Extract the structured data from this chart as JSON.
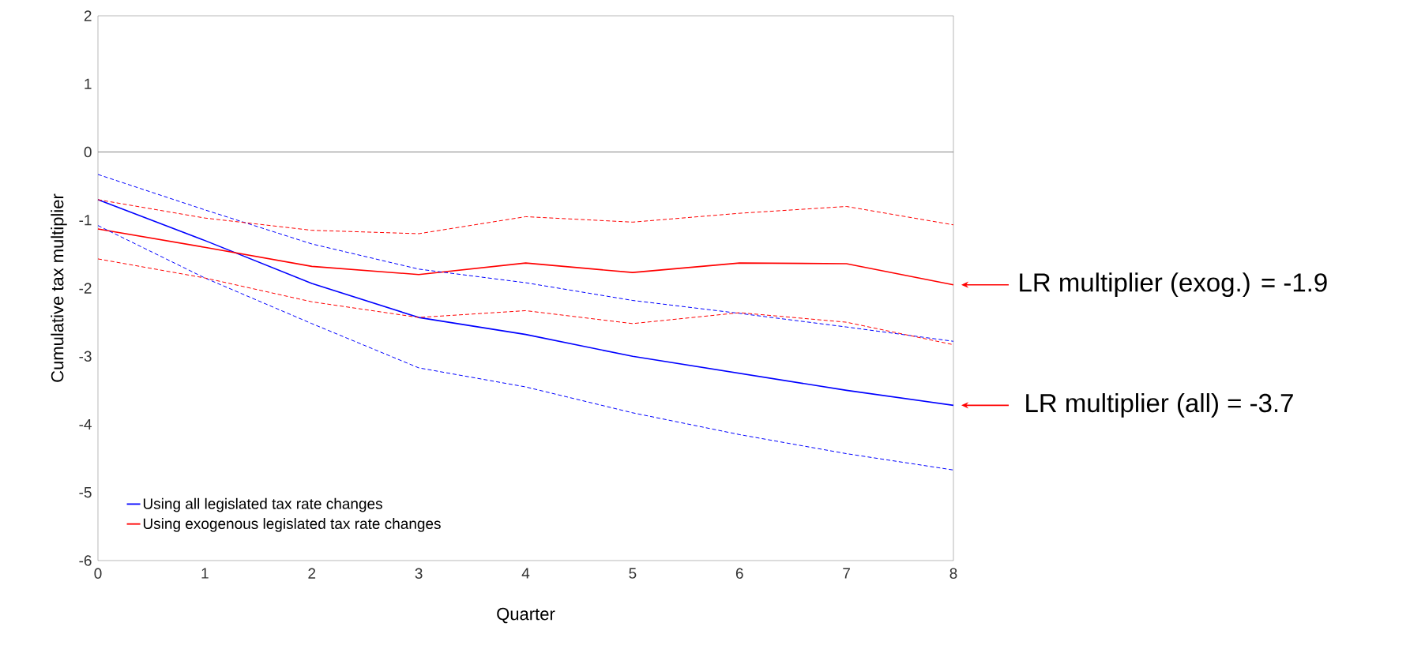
{
  "chart_data": {
    "type": "line",
    "xlabel": "Quarter",
    "ylabel": "Cumulative tax multiplier",
    "x": [
      0,
      1,
      2,
      3,
      4,
      5,
      6,
      7,
      8
    ],
    "xlim": [
      0,
      8
    ],
    "xticks": [
      0,
      1,
      2,
      3,
      4,
      5,
      6,
      7,
      8
    ],
    "ylim": [
      -6,
      2
    ],
    "yticks": [
      -6,
      -5,
      -4,
      -3,
      -2,
      -1,
      0,
      1,
      2
    ],
    "grid": false,
    "legend": "bottom left",
    "marker": "none",
    "ref_lines": [
      {
        "axis": "y",
        "value": 0
      }
    ],
    "series": [
      {
        "name": "Using all legislated tax rate changes",
        "color": "#0000ff",
        "line_style": "solid",
        "values": [
          -0.7,
          -1.3,
          -1.93,
          -2.43,
          -2.68,
          -3.0,
          -3.25,
          -3.5,
          -3.72
        ]
      },
      {
        "name": "Using exogenous legislated tax rate changes",
        "color": "#ff0000",
        "line_style": "solid",
        "values": [
          -1.13,
          -1.4,
          -1.68,
          -1.8,
          -1.63,
          -1.77,
          -1.63,
          -1.64,
          -1.95
        ]
      },
      {
        "color": "#0000ff",
        "line_style": "dashed",
        "values": [
          -0.33,
          -0.85,
          -1.35,
          -1.72,
          -1.92,
          -2.18,
          -2.37,
          -2.57,
          -2.78
        ]
      },
      {
        "color": "#0000ff",
        "line_style": "dashed",
        "values": [
          -1.08,
          -1.85,
          -2.52,
          -3.17,
          -3.45,
          -3.83,
          -4.15,
          -4.43,
          -4.67
        ]
      },
      {
        "color": "#ff0000",
        "line_style": "dashed",
        "values": [
          -0.7,
          -0.97,
          -1.15,
          -1.2,
          -0.95,
          -1.03,
          -0.9,
          -0.8,
          -1.07
        ]
      },
      {
        "color": "#ff0000",
        "line_style": "dashed",
        "values": [
          -1.57,
          -1.85,
          -2.2,
          -2.43,
          -2.33,
          -2.52,
          -2.36,
          -2.5,
          -2.83
        ]
      }
    ],
    "annotations": [
      {
        "text": "LR multiplier (exog.) = -1.9",
        "x": 8,
        "y": -1.95
      },
      {
        "text": "LR multiplier (all) = -3.7",
        "x": 8,
        "y": -3.72
      }
    ]
  }
}
